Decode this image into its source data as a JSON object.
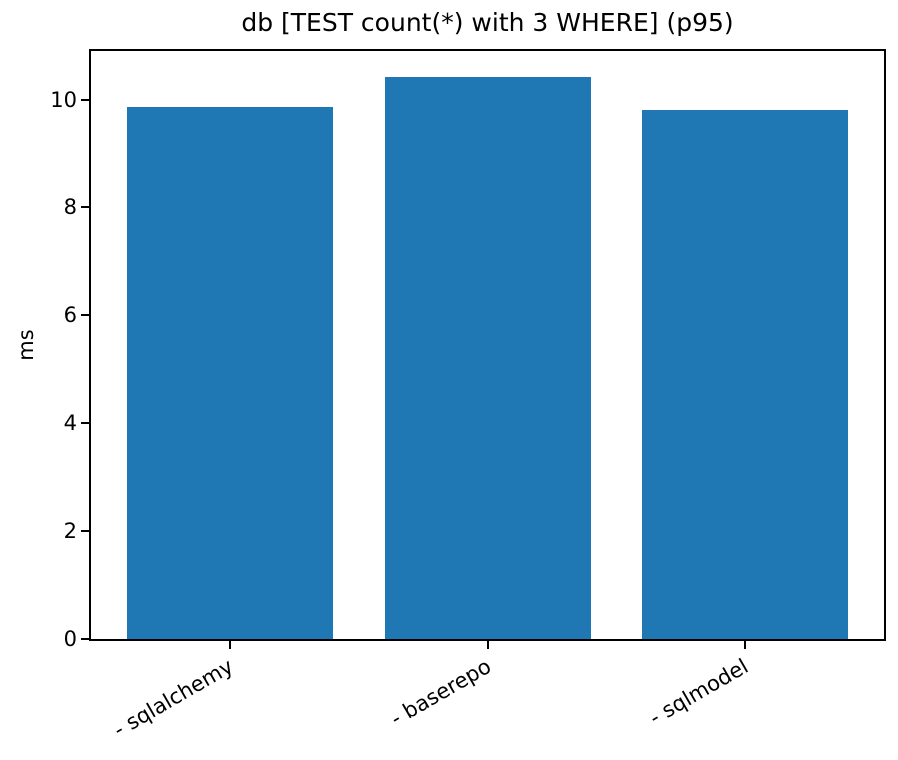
{
  "figure": {
    "background": "#ffffff"
  },
  "chart_data": {
    "type": "bar",
    "title": "db [TEST count(*) with 3 WHERE] (p95)",
    "categories": [
      "- sqlalchemy",
      "- baserepo",
      "- sqlmodel"
    ],
    "values": [
      9.86,
      10.42,
      9.81
    ],
    "xlabel": "",
    "ylabel": "ms",
    "ylim": [
      0,
      10.9
    ],
    "xlim": [
      -0.54,
      2.54
    ],
    "yticks": [
      0,
      2,
      4,
      6,
      8,
      10
    ],
    "bar_width_fraction": 0.8,
    "xtick_rotation_deg": 30,
    "grid": false,
    "legend": "none",
    "bar_color": "#1f77b4",
    "spine_color": "#000000",
    "text_color": "#000000"
  }
}
